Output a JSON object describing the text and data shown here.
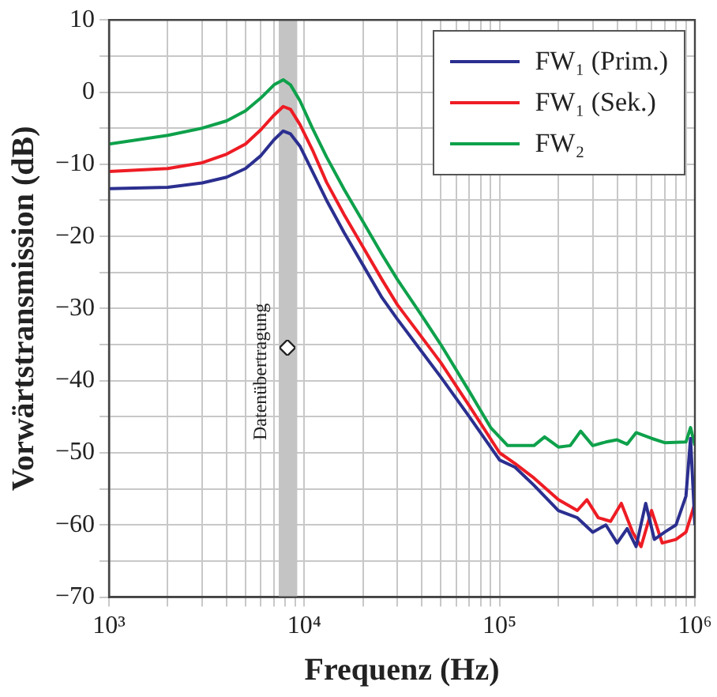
{
  "chart_data": {
    "type": "line",
    "xlabel": "Frequenz (Hz)",
    "ylabel": "Vorwärtstransmission (dB)",
    "log": "x",
    "grid": true,
    "legend": "top right",
    "marker": "none",
    "line_style": "solid",
    "xlim": [
      1000,
      1000000
    ],
    "xticks": [
      {
        "value": 1000,
        "label": "10³"
      },
      {
        "value": 2000,
        "label": null
      },
      {
        "value": 3000,
        "label": null
      },
      {
        "value": 4000,
        "label": null
      },
      {
        "value": 5000,
        "label": null
      },
      {
        "value": 6000,
        "label": null
      },
      {
        "value": 7000,
        "label": null
      },
      {
        "value": 8000,
        "label": null
      },
      {
        "value": 9000,
        "label": null
      },
      {
        "value": 10000,
        "label": "10⁴"
      },
      {
        "value": 20000,
        "label": null
      },
      {
        "value": 30000,
        "label": null
      },
      {
        "value": 40000,
        "label": null
      },
      {
        "value": 50000,
        "label": null
      },
      {
        "value": 60000,
        "label": null
      },
      {
        "value": 70000,
        "label": null
      },
      {
        "value": 80000,
        "label": null
      },
      {
        "value": 90000,
        "label": null
      },
      {
        "value": 100000,
        "label": "10⁵"
      },
      {
        "value": 200000,
        "label": null
      },
      {
        "value": 300000,
        "label": null
      },
      {
        "value": 400000,
        "label": null
      },
      {
        "value": 500000,
        "label": null
      },
      {
        "value": 600000,
        "label": null
      },
      {
        "value": 700000,
        "label": null
      },
      {
        "value": 800000,
        "label": null
      },
      {
        "value": 900000,
        "label": null
      },
      {
        "value": 1000000,
        "label": "10⁶"
      }
    ],
    "ylim": [
      -70,
      10
    ],
    "yticks": [
      -70,
      {
        "value": -65,
        "label": null
      },
      -60,
      {
        "value": -55,
        "label": null
      },
      -50,
      {
        "value": -45,
        "label": null
      },
      -40,
      {
        "value": -35,
        "label": null
      },
      -30,
      {
        "value": -25,
        "label": null
      },
      -20,
      {
        "value": -15,
        "label": null
      },
      -10,
      {
        "value": -5,
        "label": null
      },
      0,
      {
        "value": 5,
        "label": null
      },
      10
    ],
    "bands": [
      {
        "axis": "x",
        "from": 7400,
        "to": 9200,
        "label": "Datenübertragung",
        "color": "#c4c4c4"
      }
    ],
    "series": [
      {
        "name": "FW₁ (Prim.)",
        "color": "#2b2f8f",
        "x": [
          1000,
          2000,
          3000,
          4000,
          5000,
          6000,
          7000,
          7800,
          8500,
          9500,
          11000,
          13000,
          16000,
          20000,
          25000,
          30000,
          40000,
          50000,
          70000,
          100000,
          120000,
          150000,
          200000,
          250000,
          300000,
          350000,
          400000,
          450000,
          500000,
          560000,
          620000,
          700000,
          800000,
          900000,
          950000,
          1000000
        ],
        "values": [
          -13.4,
          -13.2,
          -12.6,
          -11.8,
          -10.6,
          -8.8,
          -6.6,
          -5.4,
          -5.8,
          -7.5,
          -11,
          -15,
          -19.5,
          -24,
          -28.5,
          -31.5,
          -36,
          -39.5,
          -45,
          -51,
          -52,
          -54.5,
          -58,
          -59,
          -61,
          -60,
          -62.5,
          -60.5,
          -63,
          -57,
          -62,
          -61,
          -60,
          -56,
          -48,
          -60
        ]
      },
      {
        "name": "FW₁ (Sek.)",
        "color": "#ee1c24",
        "x": [
          1000,
          2000,
          3000,
          4000,
          5000,
          6000,
          7000,
          7800,
          8500,
          9500,
          11000,
          13000,
          16000,
          20000,
          25000,
          30000,
          40000,
          50000,
          70000,
          100000,
          120000,
          150000,
          200000,
          250000,
          280000,
          320000,
          370000,
          420000,
          480000,
          530000,
          600000,
          680000,
          800000,
          900000,
          1000000
        ],
        "values": [
          -11,
          -10.6,
          -9.8,
          -8.6,
          -7.2,
          -5.2,
          -3.2,
          -2,
          -2.4,
          -4.5,
          -8,
          -12.5,
          -17,
          -21.5,
          -26,
          -29.5,
          -34,
          -37.5,
          -43.5,
          -50,
          -51.5,
          -53.5,
          -56.5,
          -58,
          -56.5,
          -59,
          -59.5,
          -57,
          -61,
          -63,
          -58,
          -62.5,
          -62,
          -61,
          -57
        ]
      },
      {
        "name": "FW₂",
        "color": "#0ea14b",
        "x": [
          1000,
          2000,
          3000,
          4000,
          5000,
          6000,
          7000,
          7800,
          8500,
          9500,
          11000,
          13000,
          16000,
          20000,
          25000,
          30000,
          40000,
          50000,
          70000,
          90000,
          110000,
          150000,
          170000,
          200000,
          230000,
          260000,
          300000,
          350000,
          400000,
          450000,
          500000,
          600000,
          700000,
          900000,
          950000,
          1000000
        ],
        "values": [
          -7.2,
          -6,
          -5,
          -4,
          -2.6,
          -0.8,
          1,
          1.7,
          1,
          -1.2,
          -5,
          -9,
          -13.5,
          -18,
          -22.5,
          -26,
          -31,
          -35,
          -41.5,
          -46.5,
          -49,
          -49,
          -47.8,
          -49.2,
          -49,
          -47,
          -49,
          -48.5,
          -48.2,
          -48.8,
          -47.2,
          -48,
          -48.6,
          -48.5,
          -46.5,
          -49
        ]
      }
    ]
  }
}
